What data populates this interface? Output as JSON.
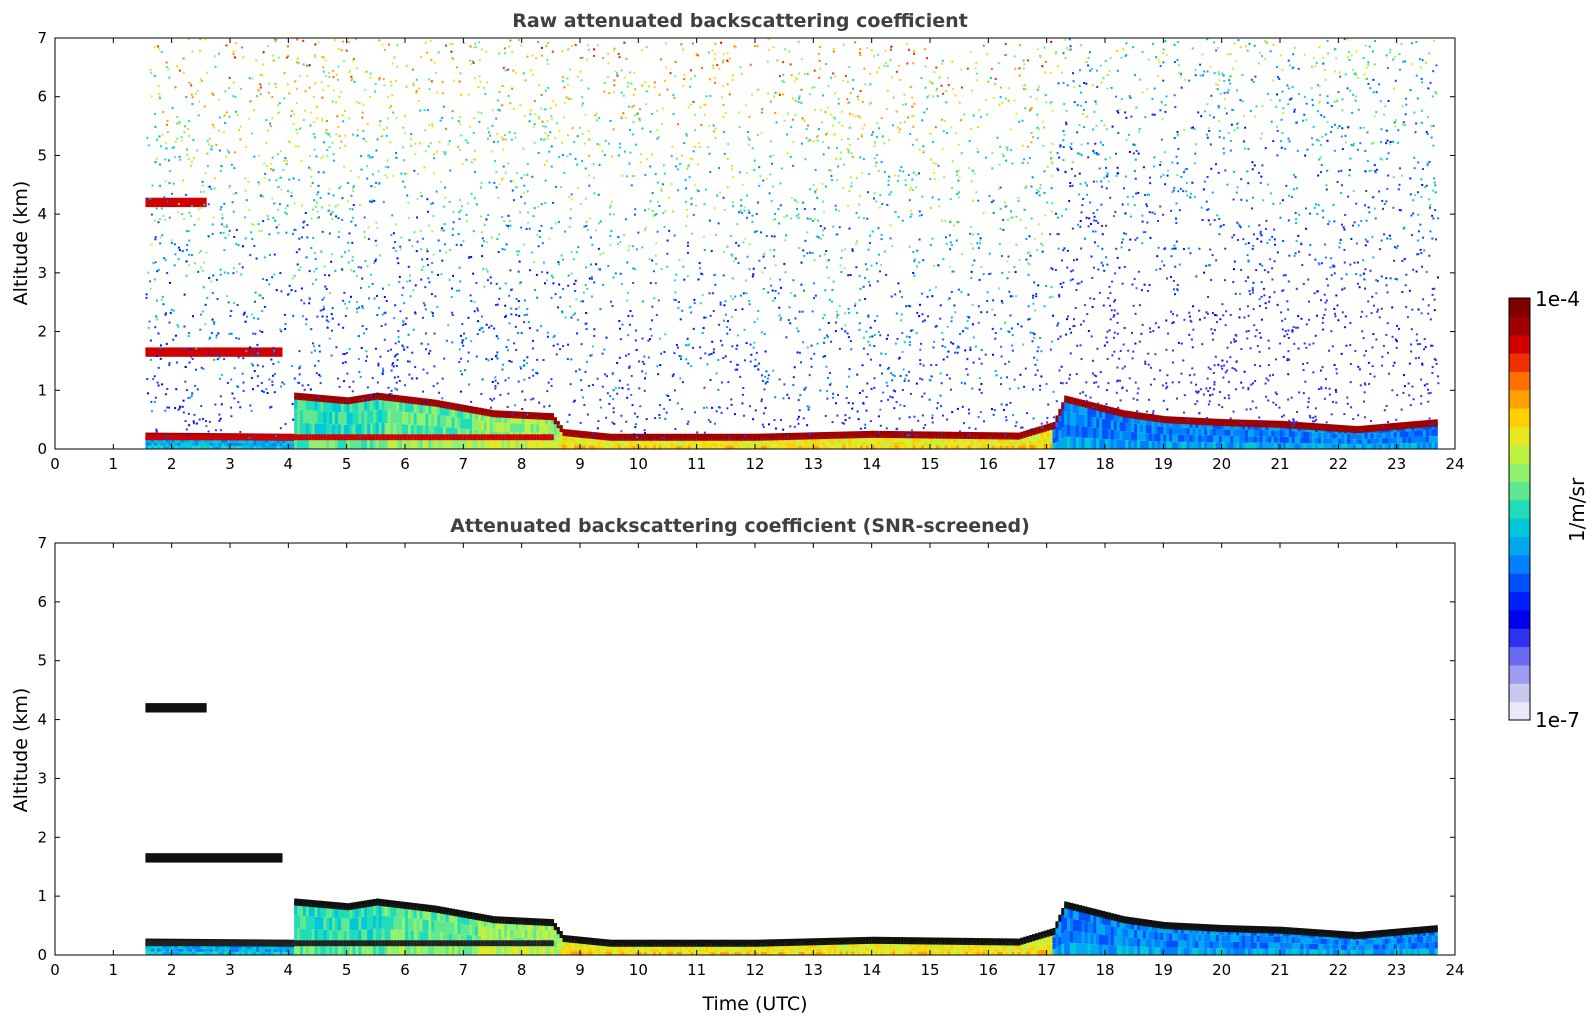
{
  "chart_data": [
    {
      "type": "heatmap",
      "title": "Raw attenuated backscattering coefficient",
      "xlabel": "",
      "ylabel": "Altitude (km)",
      "xlim": [
        0,
        24
      ],
      "ylim": [
        0,
        7
      ],
      "x_ticks": [
        0,
        1,
        2,
        3,
        4,
        5,
        6,
        7,
        8,
        9,
        10,
        11,
        12,
        13,
        14,
        15,
        16,
        17,
        18,
        19,
        20,
        21,
        22,
        23,
        24
      ],
      "y_ticks": [
        0,
        1,
        2,
        3,
        4,
        5,
        6,
        7
      ],
      "data_time_range": [
        1.55,
        23.7
      ],
      "screened": false,
      "layers": [
        {
          "name": "elevated layer",
          "start": 1.55,
          "end": 2.6,
          "altitude": 4.2
        },
        {
          "name": "low cloud",
          "start": 1.55,
          "end": 3.9,
          "altitude": 1.65
        },
        {
          "name": "boundary layer top",
          "points": [
            [
              1.55,
              0.22
            ],
            [
              4.05,
              0.2
            ],
            [
              4.1,
              0.9
            ],
            [
              5.0,
              0.82
            ],
            [
              5.5,
              0.9
            ],
            [
              6.5,
              0.78
            ],
            [
              7.5,
              0.6
            ],
            [
              8.5,
              0.55
            ],
            [
              8.7,
              0.28
            ],
            [
              9.5,
              0.2
            ],
            [
              12,
              0.2
            ],
            [
              14,
              0.25
            ],
            [
              16.5,
              0.22
            ],
            [
              17.1,
              0.4
            ],
            [
              17.3,
              0.85
            ],
            [
              18.3,
              0.6
            ],
            [
              19,
              0.5
            ],
            [
              20,
              0.45
            ],
            [
              21,
              0.42
            ],
            [
              22.3,
              0.33
            ],
            [
              23.7,
              0.45
            ]
          ]
        }
      ]
    },
    {
      "type": "heatmap",
      "title": "Attenuated backscattering coefficient (SNR-screened)",
      "xlabel": "Time (UTC)",
      "ylabel": "Altitude (km)",
      "xlim": [
        0,
        24
      ],
      "ylim": [
        0,
        7
      ],
      "x_ticks": [
        0,
        1,
        2,
        3,
        4,
        5,
        6,
        7,
        8,
        9,
        10,
        11,
        12,
        13,
        14,
        15,
        16,
        17,
        18,
        19,
        20,
        21,
        22,
        23,
        24
      ],
      "y_ticks": [
        0,
        1,
        2,
        3,
        4,
        5,
        6,
        7
      ],
      "data_time_range": [
        1.55,
        23.7
      ],
      "screened": true,
      "layers": [
        {
          "name": "elevated layer",
          "start": 1.55,
          "end": 2.6,
          "altitude": 4.2
        },
        {
          "name": "low cloud",
          "start": 1.55,
          "end": 3.9,
          "altitude": 1.65
        },
        {
          "name": "boundary layer top",
          "points": [
            [
              1.55,
              0.22
            ],
            [
              4.05,
              0.2
            ],
            [
              4.1,
              0.9
            ],
            [
              5.0,
              0.82
            ],
            [
              5.5,
              0.9
            ],
            [
              6.5,
              0.78
            ],
            [
              7.5,
              0.6
            ],
            [
              8.5,
              0.55
            ],
            [
              8.7,
              0.28
            ],
            [
              9.5,
              0.2
            ],
            [
              12,
              0.2
            ],
            [
              14,
              0.25
            ],
            [
              16.5,
              0.22
            ],
            [
              17.1,
              0.4
            ],
            [
              17.3,
              0.85
            ],
            [
              18.3,
              0.6
            ],
            [
              19,
              0.5
            ],
            [
              20,
              0.45
            ],
            [
              21,
              0.42
            ],
            [
              22.3,
              0.33
            ],
            [
              23.7,
              0.45
            ]
          ]
        }
      ]
    }
  ],
  "colorbar": {
    "label": "1/m/sr",
    "min_label": "1e-7",
    "max_label": "1e-4",
    "colors": [
      "#e8e8f8",
      "#c8c8f0",
      "#9d9df0",
      "#6a6af0",
      "#3030f0",
      "#0000f0",
      "#0020ff",
      "#0050ff",
      "#0080ff",
      "#00a8f0",
      "#00c8d8",
      "#20dcb8",
      "#60e890",
      "#90f070",
      "#c0f040",
      "#e8e820",
      "#ffd000",
      "#ffa000",
      "#ff7000",
      "#f03000",
      "#d00000",
      "#a00000",
      "#800000"
    ]
  }
}
